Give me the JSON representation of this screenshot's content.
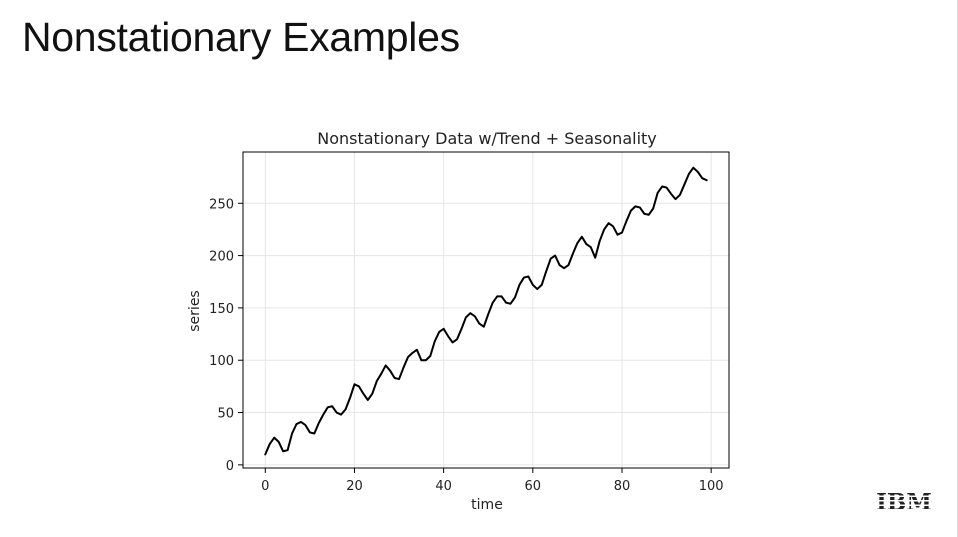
{
  "slide": {
    "title": "Nonstationary Examples"
  },
  "logo": {
    "text": "IBM"
  },
  "chart_data": {
    "type": "line",
    "title": "Nonstationary Data w/Trend + Seasonality",
    "xlabel": "time",
    "ylabel": "series",
    "xlim": [
      -5,
      104
    ],
    "ylim": [
      -3,
      299
    ],
    "xticks": [
      0,
      20,
      40,
      60,
      80,
      100
    ],
    "yticks": [
      0,
      50,
      100,
      150,
      200,
      250
    ],
    "grid": true,
    "series": [
      {
        "color": "#000000",
        "x": [
          0,
          1,
          2,
          3,
          4,
          5,
          6,
          7,
          8,
          9,
          10,
          11,
          12,
          13,
          14,
          15,
          16,
          17,
          18,
          19,
          20,
          21,
          22,
          23,
          24,
          25,
          26,
          27,
          28,
          29,
          30,
          31,
          32,
          33,
          34,
          35,
          36,
          37,
          38,
          39,
          40,
          41,
          42,
          43,
          44,
          45,
          46,
          47,
          48,
          49,
          50,
          51,
          52,
          53,
          54,
          55,
          56,
          57,
          58,
          59,
          60,
          61,
          62,
          63,
          64,
          65,
          66,
          67,
          68,
          69,
          70,
          71,
          72,
          73,
          74,
          75,
          76,
          77,
          78,
          79,
          80,
          81,
          82,
          83,
          84,
          85,
          86,
          87,
          88,
          89,
          90,
          91,
          92,
          93,
          94,
          95,
          96,
          97,
          98,
          99
        ],
        "y": [
          10,
          20,
          26,
          22,
          13,
          14,
          30,
          39,
          41,
          38,
          31,
          30,
          40,
          48,
          55,
          56,
          50,
          48,
          53,
          64,
          77,
          75,
          68,
          62,
          68,
          80,
          87,
          95,
          90,
          83,
          82,
          93,
          103,
          107,
          110,
          100,
          100,
          104,
          118,
          127,
          130,
          123,
          117,
          120,
          130,
          141,
          145,
          142,
          135,
          132,
          144,
          155,
          161,
          161,
          155,
          154,
          160,
          172,
          179,
          180,
          172,
          168,
          172,
          185,
          197,
          200,
          191,
          188,
          191,
          202,
          212,
          218,
          211,
          208,
          198,
          214,
          225,
          231,
          228,
          220,
          222,
          233,
          243,
          247,
          246,
          240,
          239,
          245,
          260,
          266,
          265,
          259,
          254,
          258,
          268,
          278,
          284,
          280,
          274,
          272
        ]
      }
    ]
  }
}
